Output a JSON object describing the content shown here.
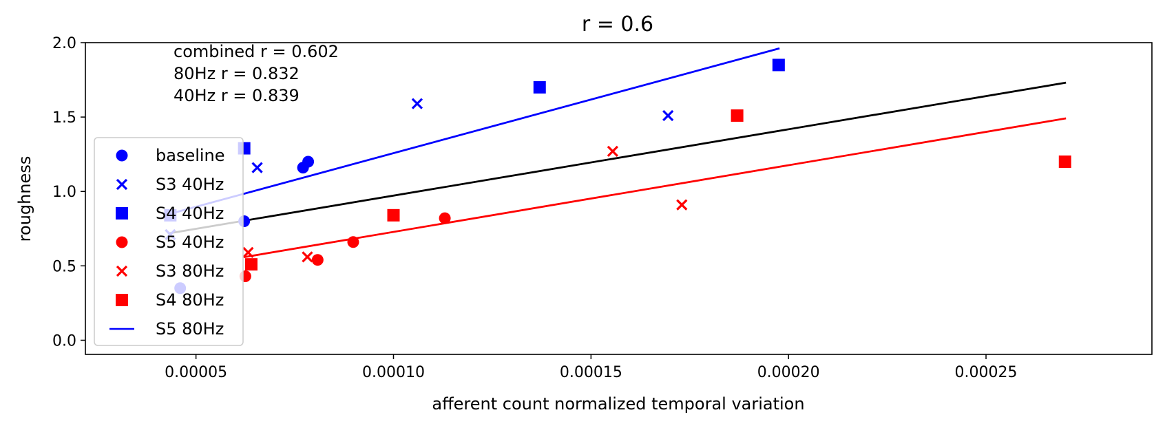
{
  "chart_data": {
    "type": "scatter",
    "title": "r = 0.6",
    "xlabel": "afferent count normalized temporal variation",
    "ylabel": "roughness",
    "xlim": [
      2.2e-05,
      0.000292
    ],
    "ylim": [
      -0.095,
      2.0
    ],
    "xticks": [
      5e-05,
      0.0001,
      0.00015,
      0.0002,
      0.00025
    ],
    "xtick_labels": [
      "0.00005",
      "0.00010",
      "0.00015",
      "0.00020",
      "0.00025"
    ],
    "yticks": [
      0.0,
      0.5,
      1.0,
      1.5,
      2.0
    ],
    "ytick_labels": [
      "0.0",
      "0.5",
      "1.0",
      "1.5",
      "2.0"
    ],
    "grid": false,
    "legend_position": "lower-left",
    "annotations": [
      "combined r = 0.602",
      "80Hz r = 0.832",
      "40Hz r = 0.839"
    ],
    "series": [
      {
        "name": "baseline",
        "marker": "circle",
        "color": "#0000ff",
        "x": [
          4.6e-05,
          6.22e-05,
          7.71e-05,
          7.84e-05
        ],
        "y": [
          0.35,
          0.8,
          1.16,
          1.2
        ]
      },
      {
        "name": "S3 40Hz",
        "marker": "x",
        "color": "#0000ff",
        "x": [
          4.35e-05,
          6.55e-05,
          0.000106,
          0.0001695
        ],
        "y": [
          0.71,
          1.16,
          1.59,
          1.51
        ]
      },
      {
        "name": "S4 40Hz",
        "marker": "square",
        "color": "#0000ff",
        "x": [
          4.35e-05,
          6.22e-05,
          0.000137,
          0.0001975
        ],
        "y": [
          0.84,
          1.29,
          1.7,
          1.85
        ]
      },
      {
        "name": "S5 40Hz",
        "marker": "circle",
        "color": "#ff0000",
        "x": [
          6.25e-05,
          8.08e-05,
          8.98e-05,
          0.000113
        ],
        "y": [
          0.43,
          0.54,
          0.66,
          0.82
        ]
      },
      {
        "name": "S3 80Hz",
        "marker": "x",
        "color": "#ff0000",
        "x": [
          6.32e-05,
          7.82e-05,
          0.0001555,
          0.000173
        ],
        "y": [
          0.59,
          0.56,
          1.27,
          0.91
        ]
      },
      {
        "name": "S4 80Hz",
        "marker": "square",
        "color": "#ff0000",
        "x": [
          6.4e-05,
          0.0001,
          0.000187,
          0.00027
        ],
        "y": [
          0.51,
          0.84,
          1.51,
          1.2
        ]
      }
    ],
    "fit_lines": [
      {
        "name": "S5 80Hz",
        "color": "#0000ff",
        "x": [
          4.35e-05,
          0.0001975
        ],
        "y": [
          0.85,
          1.96
        ]
      },
      {
        "color": "#000000",
        "x": [
          4.35e-05,
          0.00027
        ],
        "y": [
          0.72,
          1.73
        ]
      },
      {
        "color": "#ff0000",
        "x": [
          6.25e-05,
          0.00027
        ],
        "y": [
          0.56,
          1.49
        ]
      }
    ],
    "legend": [
      {
        "label": "baseline",
        "marker": "circle",
        "color": "#0000ff"
      },
      {
        "label": "S3 40Hz",
        "marker": "x",
        "color": "#0000ff"
      },
      {
        "label": "S4 40Hz",
        "marker": "square",
        "color": "#0000ff"
      },
      {
        "label": "S5 40Hz",
        "marker": "circle",
        "color": "#ff0000"
      },
      {
        "label": "S3 80Hz",
        "marker": "x",
        "color": "#ff0000"
      },
      {
        "label": "S4 80Hz",
        "marker": "square",
        "color": "#ff0000"
      },
      {
        "label": "S5 80Hz",
        "marker": "line",
        "color": "#0000ff"
      }
    ]
  }
}
